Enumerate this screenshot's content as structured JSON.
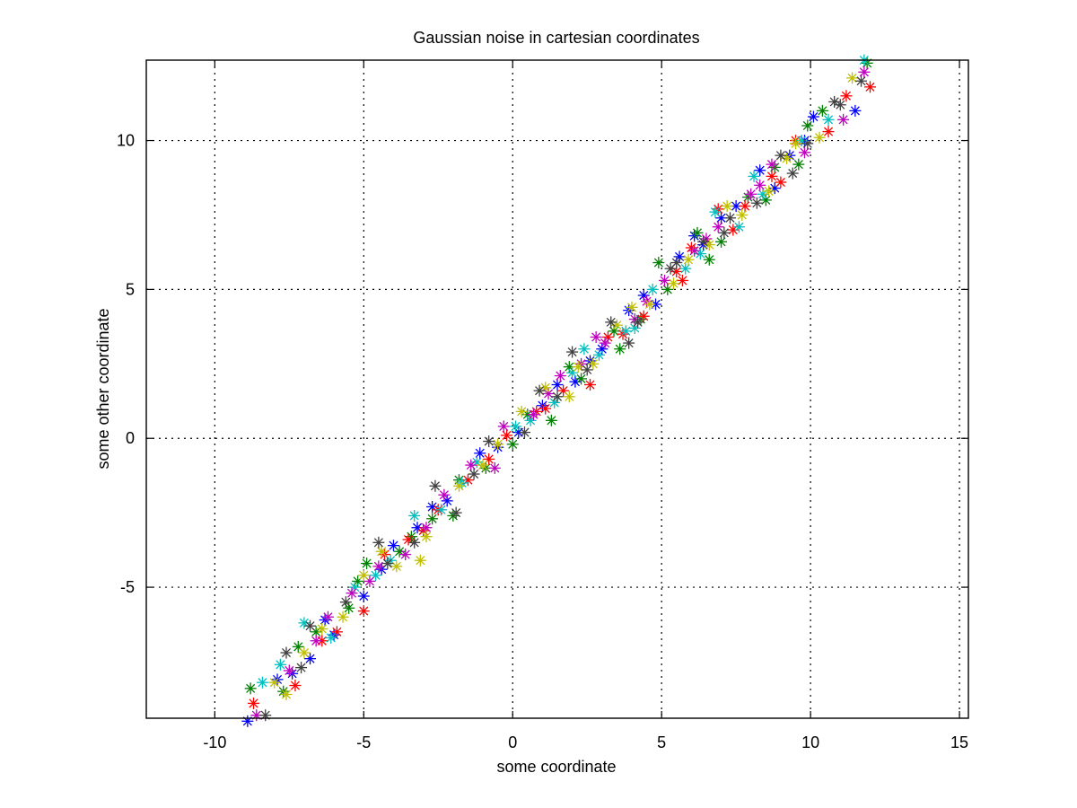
{
  "chart_data": {
    "type": "scatter",
    "title": "Gaussian noise in cartesian coordinates",
    "xlabel": "some coordinate",
    "ylabel": "some other coordinate",
    "xlim": [
      -12.3,
      15.3
    ],
    "ylim": [
      -9.4,
      12.7
    ],
    "xticks": [
      -10,
      -5,
      0,
      5,
      10,
      15
    ],
    "yticks": [
      -5,
      0,
      5,
      10
    ],
    "xtick_labels": [
      "-10",
      "-5",
      "0",
      "5",
      "10",
      "15"
    ],
    "ytick_labels": [
      "-5",
      "0",
      "5",
      "10"
    ],
    "grid": true,
    "marker": "asterisk",
    "colors": [
      "#0000ff",
      "#008000",
      "#ff0000",
      "#00bfbf",
      "#bf00bf",
      "#bfbf00",
      "#404040"
    ],
    "series": [
      {
        "color": "#0000ff",
        "points": [
          [
            -8.9,
            -9.5
          ],
          [
            -7.4,
            -7.9
          ],
          [
            -6.8,
            -7.4
          ],
          [
            -6.3,
            -6.1
          ],
          [
            -5.0,
            -5.3
          ],
          [
            -4.4,
            -4.4
          ],
          [
            -3.2,
            -3.0
          ],
          [
            -2.2,
            -2.1
          ],
          [
            -1.1,
            -0.5
          ],
          [
            0.2,
            0.2
          ],
          [
            1.0,
            1.1
          ],
          [
            2.1,
            1.9
          ],
          [
            3.0,
            3.0
          ],
          [
            3.9,
            4.3
          ],
          [
            4.8,
            4.5
          ],
          [
            5.6,
            6.1
          ],
          [
            6.4,
            6.5
          ],
          [
            7.5,
            7.8
          ],
          [
            8.3,
            9.0
          ],
          [
            9.3,
            9.5
          ],
          [
            10.1,
            10.8
          ],
          [
            11.5,
            11.0
          ],
          [
            -7.9,
            -8.1
          ],
          [
            -6.0,
            -6.6
          ],
          [
            -4.0,
            -3.6
          ],
          [
            -2.7,
            -2.3
          ],
          [
            -0.5,
            -0.3
          ],
          [
            1.5,
            1.8
          ],
          [
            2.6,
            2.6
          ],
          [
            4.4,
            4.8
          ],
          [
            6.1,
            6.8
          ],
          [
            7.0,
            7.4
          ],
          [
            8.8,
            8.4
          ],
          [
            9.8,
            10.0
          ]
        ]
      },
      {
        "color": "#008000",
        "points": [
          [
            -8.8,
            -8.4
          ],
          [
            -7.7,
            -8.5
          ],
          [
            -6.6,
            -6.5
          ],
          [
            -5.5,
            -5.7
          ],
          [
            -4.9,
            -4.2
          ],
          [
            -3.8,
            -3.8
          ],
          [
            -2.7,
            -2.7
          ],
          [
            -1.8,
            -1.4
          ],
          [
            -0.9,
            -1.0
          ],
          [
            0.5,
            0.8
          ],
          [
            1.3,
            0.6
          ],
          [
            2.3,
            2.0
          ],
          [
            3.4,
            3.6
          ],
          [
            4.3,
            4.0
          ],
          [
            5.2,
            5.0
          ],
          [
            6.2,
            6.9
          ],
          [
            7.0,
            6.6
          ],
          [
            7.9,
            8.1
          ],
          [
            8.8,
            9.1
          ],
          [
            9.6,
            9.2
          ],
          [
            10.4,
            11.0
          ],
          [
            11.9,
            12.6
          ],
          [
            -7.2,
            -7.0
          ],
          [
            -5.2,
            -4.8
          ],
          [
            -3.4,
            -3.3
          ],
          [
            -2.0,
            -2.6
          ],
          [
            0.0,
            -0.2
          ],
          [
            1.9,
            2.4
          ],
          [
            3.6,
            3.0
          ],
          [
            4.9,
            5.9
          ],
          [
            6.6,
            6.0
          ],
          [
            8.5,
            8.0
          ],
          [
            9.9,
            10.5
          ]
        ]
      },
      {
        "color": "#ff0000",
        "points": [
          [
            -8.7,
            -8.9
          ],
          [
            -7.3,
            -8.3
          ],
          [
            -6.4,
            -6.8
          ],
          [
            -5.0,
            -5.8
          ],
          [
            -4.3,
            -3.9
          ],
          [
            -3.5,
            -3.4
          ],
          [
            -2.5,
            -2.4
          ],
          [
            -1.5,
            -1.4
          ],
          [
            -0.2,
            0.1
          ],
          [
            0.8,
            0.9
          ],
          [
            1.7,
            1.6
          ],
          [
            2.6,
            1.8
          ],
          [
            3.7,
            3.5
          ],
          [
            4.4,
            4.1
          ],
          [
            5.5,
            5.6
          ],
          [
            6.0,
            6.4
          ],
          [
            6.9,
            7.7
          ],
          [
            7.8,
            7.8
          ],
          [
            8.7,
            8.8
          ],
          [
            9.5,
            10.0
          ],
          [
            10.6,
            10.3
          ],
          [
            12.0,
            11.8
          ],
          [
            11.2,
            11.5
          ],
          [
            -5.9,
            -6.5
          ],
          [
            -3.0,
            -3.1
          ],
          [
            -0.8,
            -0.7
          ],
          [
            1.1,
            1.0
          ],
          [
            3.2,
            3.4
          ],
          [
            5.7,
            5.3
          ],
          [
            7.4,
            7.0
          ],
          [
            9.0,
            8.6
          ]
        ]
      },
      {
        "color": "#00bfbf",
        "points": [
          [
            -8.4,
            -8.2
          ],
          [
            -7.0,
            -6.2
          ],
          [
            -6.1,
            -6.7
          ],
          [
            -5.3,
            -5.0
          ],
          [
            -4.6,
            -4.6
          ],
          [
            -3.3,
            -2.6
          ],
          [
            -2.4,
            -2.4
          ],
          [
            -1.2,
            -0.8
          ],
          [
            0.1,
            0.4
          ],
          [
            1.4,
            1.2
          ],
          [
            2.0,
            2.2
          ],
          [
            2.9,
            2.8
          ],
          [
            3.8,
            3.6
          ],
          [
            4.7,
            5.0
          ],
          [
            5.8,
            5.7
          ],
          [
            6.8,
            7.6
          ],
          [
            7.6,
            7.1
          ],
          [
            8.4,
            8.2
          ],
          [
            9.7,
            10.0
          ],
          [
            10.6,
            10.7
          ],
          [
            11.8,
            12.7
          ],
          [
            -7.8,
            -7.6
          ],
          [
            -4.1,
            -4.1
          ],
          [
            -1.7,
            -1.5
          ],
          [
            0.6,
            0.6
          ],
          [
            2.4,
            3.0
          ],
          [
            4.1,
            3.7
          ],
          [
            6.3,
            6.2
          ],
          [
            8.1,
            8.8
          ]
        ]
      },
      {
        "color": "#bf00bf",
        "points": [
          [
            -8.6,
            -9.3
          ],
          [
            -7.5,
            -7.8
          ],
          [
            -6.6,
            -6.8
          ],
          [
            -5.4,
            -5.2
          ],
          [
            -4.5,
            -4.3
          ],
          [
            -3.6,
            -3.9
          ],
          [
            -2.3,
            -1.9
          ],
          [
            -1.4,
            -0.9
          ],
          [
            -0.6,
            -1.0
          ],
          [
            0.7,
            0.8
          ],
          [
            1.6,
            2.1
          ],
          [
            2.3,
            2.5
          ],
          [
            3.1,
            3.2
          ],
          [
            4.1,
            4.0
          ],
          [
            5.1,
            5.3
          ],
          [
            6.1,
            6.3
          ],
          [
            6.9,
            7.1
          ],
          [
            8.0,
            8.2
          ],
          [
            8.7,
            9.2
          ],
          [
            9.8,
            9.6
          ],
          [
            11.1,
            10.7
          ],
          [
            11.8,
            12.3
          ],
          [
            -6.2,
            -6.0
          ],
          [
            -4.8,
            -4.8
          ],
          [
            -2.9,
            -3.0
          ],
          [
            -0.3,
            0.4
          ],
          [
            1.2,
            1.5
          ],
          [
            2.8,
            3.4
          ],
          [
            4.5,
            4.6
          ],
          [
            6.5,
            6.7
          ],
          [
            8.3,
            8.5
          ]
        ]
      },
      {
        "color": "#bfbf00",
        "points": [
          [
            -8.0,
            -8.2
          ],
          [
            -7.6,
            -8.6
          ],
          [
            -6.4,
            -6.4
          ],
          [
            -5.7,
            -6.0
          ],
          [
            -4.4,
            -3.8
          ],
          [
            -3.9,
            -4.3
          ],
          [
            -2.9,
            -3.3
          ],
          [
            -1.8,
            -1.6
          ],
          [
            -0.5,
            -0.2
          ],
          [
            0.3,
            0.9
          ],
          [
            1.1,
            1.7
          ],
          [
            1.9,
            1.4
          ],
          [
            2.7,
            2.5
          ],
          [
            3.5,
            3.8
          ],
          [
            4.6,
            4.5
          ],
          [
            5.4,
            5.2
          ],
          [
            6.6,
            6.5
          ],
          [
            7.2,
            7.8
          ],
          [
            8.6,
            8.3
          ],
          [
            9.2,
            9.4
          ],
          [
            10.3,
            10.1
          ],
          [
            11.4,
            12.1
          ],
          [
            -7.0,
            -7.2
          ],
          [
            -5.0,
            -4.6
          ],
          [
            -3.1,
            -4.1
          ],
          [
            -1.0,
            -0.9
          ],
          [
            2.2,
            2.4
          ],
          [
            4.0,
            4.4
          ],
          [
            5.9,
            6.0
          ],
          [
            7.7,
            7.5
          ],
          [
            9.5,
            9.9
          ]
        ]
      },
      {
        "color": "#404040",
        "points": [
          [
            -8.3,
            -9.3
          ],
          [
            -7.1,
            -7.7
          ],
          [
            -6.8,
            -6.3
          ],
          [
            -5.6,
            -5.5
          ],
          [
            -4.5,
            -3.5
          ],
          [
            -3.3,
            -3.5
          ],
          [
            -2.6,
            -1.6
          ],
          [
            -1.3,
            -1.2
          ],
          [
            -0.8,
            -0.1
          ],
          [
            0.4,
            0.2
          ],
          [
            1.5,
            1.4
          ],
          [
            2.5,
            2.3
          ],
          [
            3.3,
            3.9
          ],
          [
            4.2,
            3.9
          ],
          [
            5.3,
            5.7
          ],
          [
            6.4,
            6.6
          ],
          [
            7.3,
            7.4
          ],
          [
            8.2,
            7.9
          ],
          [
            9.0,
            9.5
          ],
          [
            9.9,
            9.9
          ],
          [
            10.8,
            11.3
          ],
          [
            11.7,
            12.0
          ],
          [
            -7.6,
            -7.2
          ],
          [
            -4.2,
            -4.2
          ],
          [
            -1.9,
            -2.5
          ],
          [
            0.9,
            1.6
          ],
          [
            2.0,
            2.9
          ],
          [
            3.9,
            3.2
          ],
          [
            5.5,
            5.9
          ],
          [
            7.1,
            6.9
          ],
          [
            9.4,
            8.9
          ],
          [
            11.0,
            11.2
          ]
        ]
      }
    ]
  }
}
